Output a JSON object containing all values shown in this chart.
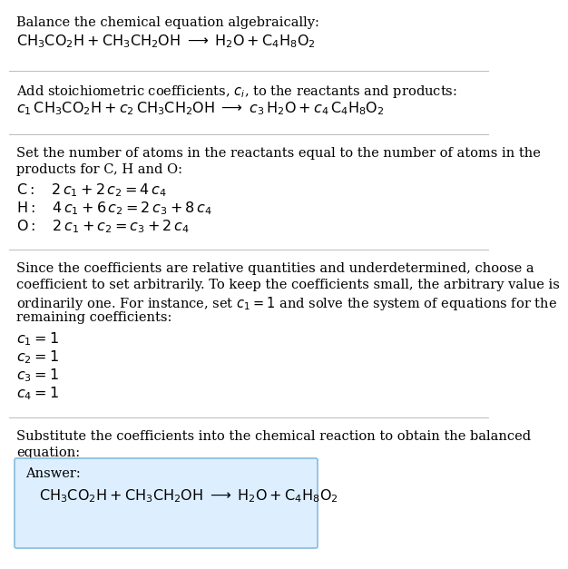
{
  "title_line": "Balance the chemical equation algebraically:",
  "reaction_line": "$\\mathrm{CH_3CO_2H + CH_3CH_2OH} \\;\\longrightarrow\\; \\mathrm{H_2O + C_4H_8O_2}$",
  "section2_intro": "Add stoichiometric coefficients, $c_i$, to the reactants and products:",
  "section2_eq": "$c_1\\,\\mathrm{CH_3CO_2H} + c_2\\,\\mathrm{CH_3CH_2OH} \\;\\longrightarrow\\; c_3\\,\\mathrm{H_2O} + c_4\\,\\mathrm{C_4H_8O_2}$",
  "section3_intro_1": "Set the number of atoms in the reactants equal to the number of atoms in the",
  "section3_intro_2": "products for C, H and O:",
  "section3_C": "$\\mathrm{C:}\\quad 2\\,c_1 + 2\\,c_2 = 4\\,c_4$",
  "section3_H": "$\\mathrm{H:}\\quad 4\\,c_1 + 6\\,c_2 = 2\\,c_3 + 8\\,c_4$",
  "section3_O": "$\\mathrm{O:}\\quad 2\\,c_1 + c_2 = c_3 + 2\\,c_4$",
  "section4_intro_1": "Since the coefficients are relative quantities and underdetermined, choose a",
  "section4_intro_2": "coefficient to set arbitrarily. To keep the coefficients small, the arbitrary value is",
  "section4_intro_3": "ordinarily one. For instance, set $c_1 = 1$ and solve the system of equations for the",
  "section4_intro_4": "remaining coefficients:",
  "section4_c1": "$c_1 = 1$",
  "section4_c2": "$c_2 = 1$",
  "section4_c3": "$c_3 = 1$",
  "section4_c4": "$c_4 = 1$",
  "section5_intro_1": "Substitute the coefficients into the chemical reaction to obtain the balanced",
  "section5_intro_2": "equation:",
  "answer_label": "Answer:",
  "answer_eq": "$\\mathrm{CH_3CO_2H + CH_3CH_2OH} \\;\\longrightarrow\\; \\mathrm{H_2O + C_4H_8O_2}$",
  "bg_color": "#ffffff",
  "text_color": "#000000",
  "answer_box_facecolor": "#ddeeff",
  "answer_box_edgecolor": "#88bbdd",
  "divider_color": "#bbbbbb",
  "fs": 10.5,
  "mfs": 11.5
}
